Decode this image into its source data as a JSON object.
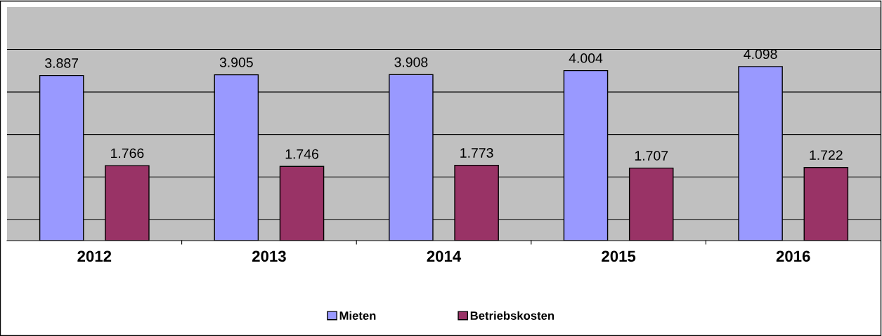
{
  "chart_data": {
    "type": "bar",
    "categories": [
      "2012",
      "2013",
      "2014",
      "2015",
      "2016"
    ],
    "series": [
      {
        "name": "Mieten",
        "color": "#9999ff",
        "values": [
          3887,
          3905,
          3908,
          4004,
          4098
        ],
        "value_labels": [
          "3.887",
          "3.905",
          "3.908",
          "4.004",
          "4.098"
        ]
      },
      {
        "name": "Betriebskosten",
        "color": "#993366",
        "values": [
          1766,
          1746,
          1773,
          1707,
          1722
        ],
        "value_labels": [
          "1.766",
          "1.746",
          "1.773",
          "1.707",
          "1.722"
        ]
      }
    ],
    "ylim": [
      0,
      5500
    ],
    "yticks": [
      {
        "value": 500,
        "label": null
      },
      {
        "value": 1500,
        "label": null
      },
      {
        "value": 2500,
        "label": null
      },
      {
        "value": 3500,
        "label": null
      },
      {
        "value": 4500,
        "label": null
      }
    ],
    "tick_labels": "x",
    "grid": "y",
    "legend": "bottom"
  }
}
